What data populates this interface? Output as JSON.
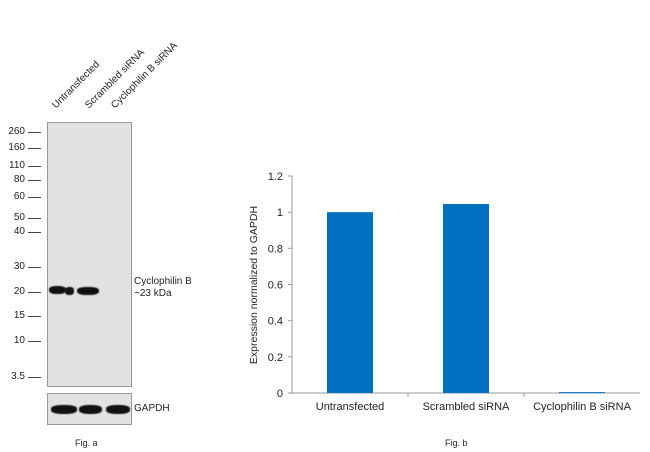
{
  "figure_a": {
    "lanes": [
      "Untransfected",
      "Scrambled siRNA",
      "Cyclophilin B siRNA"
    ],
    "markers": [
      "260",
      "160",
      "110",
      "80",
      "60",
      "50",
      "40",
      "30",
      "20",
      "15",
      "10",
      "3.5"
    ],
    "target_label": "Cyclophilin B",
    "target_size": "~23 kDa",
    "loading_control": "GAPDH",
    "caption": "Fig. a"
  },
  "chart_data": {
    "type": "bar",
    "categories": [
      "Untransfected",
      "Scrambled siRNA",
      "Cyclophilin B siRNA"
    ],
    "values": [
      1.0,
      1.045,
      0.005
    ],
    "title": "",
    "xlabel": "",
    "ylabel": "Expression normalized to GAPDH",
    "ylim": [
      0,
      1.2
    ],
    "yticks": [
      "0",
      "0.2",
      "0.4",
      "0.6",
      "0.8",
      "1",
      "1.2"
    ],
    "bar_color": "#0070c0",
    "grid": false,
    "caption": "Fig. b"
  }
}
